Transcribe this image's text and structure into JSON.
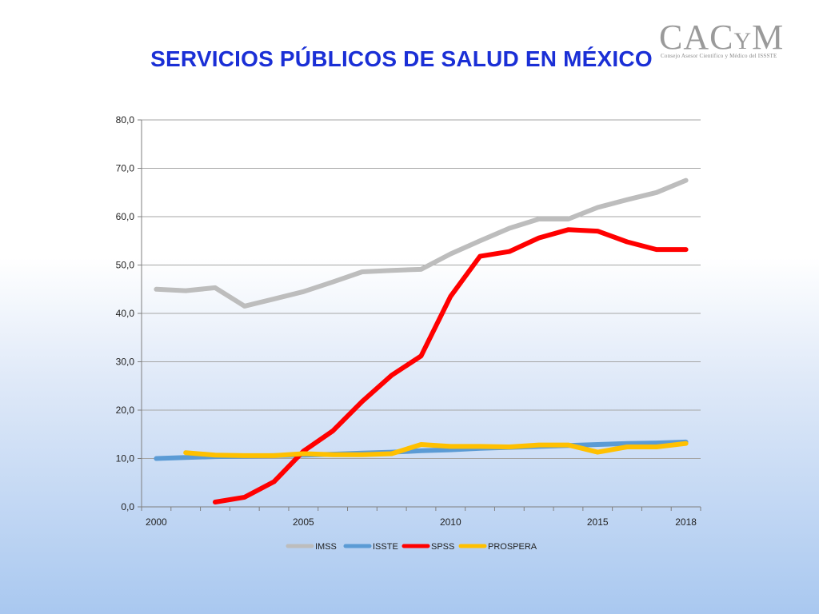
{
  "slide": {
    "title": "SERVICIOS PÚBLICOS DE SALUD EN MÉXICO"
  },
  "logo": {
    "name_main": "CAC",
    "name_y": "Y",
    "name_end": "M",
    "subtitle": "Consejo Asesor Científico y Médico del ISSSTE",
    "color": "#9a9a9a"
  },
  "chart_data": {
    "type": "line",
    "title": "",
    "xlabel": "",
    "ylabel": "",
    "xlim": [
      2000,
      2018
    ],
    "ylim": [
      0,
      80
    ],
    "y_ticks": [
      "0,0",
      "10,0",
      "20,0",
      "30,0",
      "40,0",
      "50,0",
      "60,0",
      "70,0",
      "80,0"
    ],
    "x_tick_labels": [
      "2000",
      "2005",
      "2010",
      "2015",
      "2018"
    ],
    "grid": "horizontal",
    "legend_position": "bottom",
    "series": [
      {
        "name": "IMSS",
        "color": "#bdbdbd",
        "x": [
          2000,
          2001,
          2002,
          2003,
          2004,
          2005,
          2006,
          2007,
          2008,
          2009,
          2010,
          2011,
          2012,
          2013,
          2014,
          2015,
          2016,
          2017,
          2018
        ],
        "values": [
          45.0,
          44.7,
          45.3,
          41.5,
          43.0,
          44.5,
          46.5,
          48.6,
          48.9,
          49.1,
          52.3,
          55.0,
          57.6,
          59.5,
          59.5,
          61.9,
          63.5,
          65.0,
          67.5
        ]
      },
      {
        "name": "ISSTE",
        "color": "#5b9bd5",
        "x": [
          2000,
          2001,
          2002,
          2003,
          2004,
          2005,
          2006,
          2007,
          2008,
          2009,
          2010,
          2011,
          2012,
          2013,
          2014,
          2015,
          2016,
          2017,
          2018
        ],
        "values": [
          10.0,
          10.2,
          10.4,
          10.5,
          10.6,
          10.7,
          10.9,
          11.1,
          11.3,
          11.6,
          11.8,
          12.1,
          12.3,
          12.5,
          12.7,
          12.9,
          13.1,
          13.2,
          13.4
        ]
      },
      {
        "name": "SPSS",
        "color": "#ff0000",
        "x": [
          2002,
          2003,
          2004,
          2005,
          2006,
          2007,
          2008,
          2009,
          2010,
          2011,
          2012,
          2013,
          2014,
          2015,
          2016,
          2017,
          2018
        ],
        "values": [
          1.0,
          2.0,
          5.2,
          11.5,
          15.7,
          21.8,
          27.2,
          31.2,
          43.5,
          51.8,
          52.8,
          55.6,
          57.3,
          57.0,
          54.8,
          53.2,
          53.2
        ]
      },
      {
        "name": "PROSPERA",
        "color": "#ffc000",
        "x": [
          2001,
          2002,
          2003,
          2004,
          2005,
          2006,
          2007,
          2008,
          2009,
          2010,
          2011,
          2012,
          2013,
          2014,
          2015,
          2016,
          2017,
          2018
        ],
        "values": [
          11.2,
          10.7,
          10.6,
          10.6,
          11.0,
          10.8,
          10.8,
          11.0,
          12.9,
          12.5,
          12.5,
          12.4,
          12.8,
          12.8,
          11.3,
          12.4,
          12.4,
          13.1
        ]
      }
    ]
  }
}
